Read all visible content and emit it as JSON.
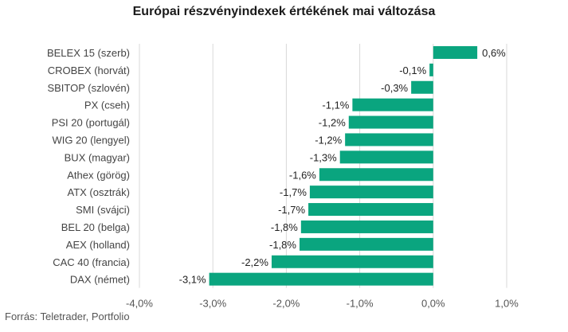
{
  "chart_data": {
    "type": "bar",
    "orientation": "horizontal",
    "title": "Európai részvényindexek értékének mai változása",
    "source": "Forrás: Teletrader, Portfolio",
    "bar_color": "#0aa57f",
    "grid": true,
    "xlim": [
      -4.0,
      1.0
    ],
    "xticks": [
      "-4,0%",
      "-3,0%",
      "-2,0%",
      "-1,0%",
      "0,0%",
      "1,0%"
    ],
    "xtick_values": [
      -4.0,
      -3.0,
      -2.0,
      -1.0,
      0.0,
      1.0
    ],
    "categories": [
      "BELEX 15 (szerb)",
      "CROBEX (horvát)",
      "SBITOP (szlovén)",
      "PX (cseh)",
      "PSI 20 (portugál)",
      "WIG 20 (lengyel)",
      "BUX (magyar)",
      "Athex (görög)",
      "ATX (osztrák)",
      "SMI (svájci)",
      "BEL 20 (belga)",
      "AEX (holland)",
      "CAC 40 (francia)",
      "DAX (német)"
    ],
    "values": [
      0.6,
      -0.05,
      -0.3,
      -1.1,
      -1.15,
      -1.2,
      -1.27,
      -1.55,
      -1.68,
      -1.7,
      -1.8,
      -1.82,
      -2.2,
      -3.05
    ],
    "data_labels": [
      "0,6%",
      "-0,1%",
      "-0,3%",
      "-1,1%",
      "-1,2%",
      "-1,2%",
      "-1,3%",
      "-1,6%",
      "-1,7%",
      "-1,7%",
      "-1,8%",
      "-1,8%",
      "-2,2%",
      "-3,1%"
    ]
  }
}
